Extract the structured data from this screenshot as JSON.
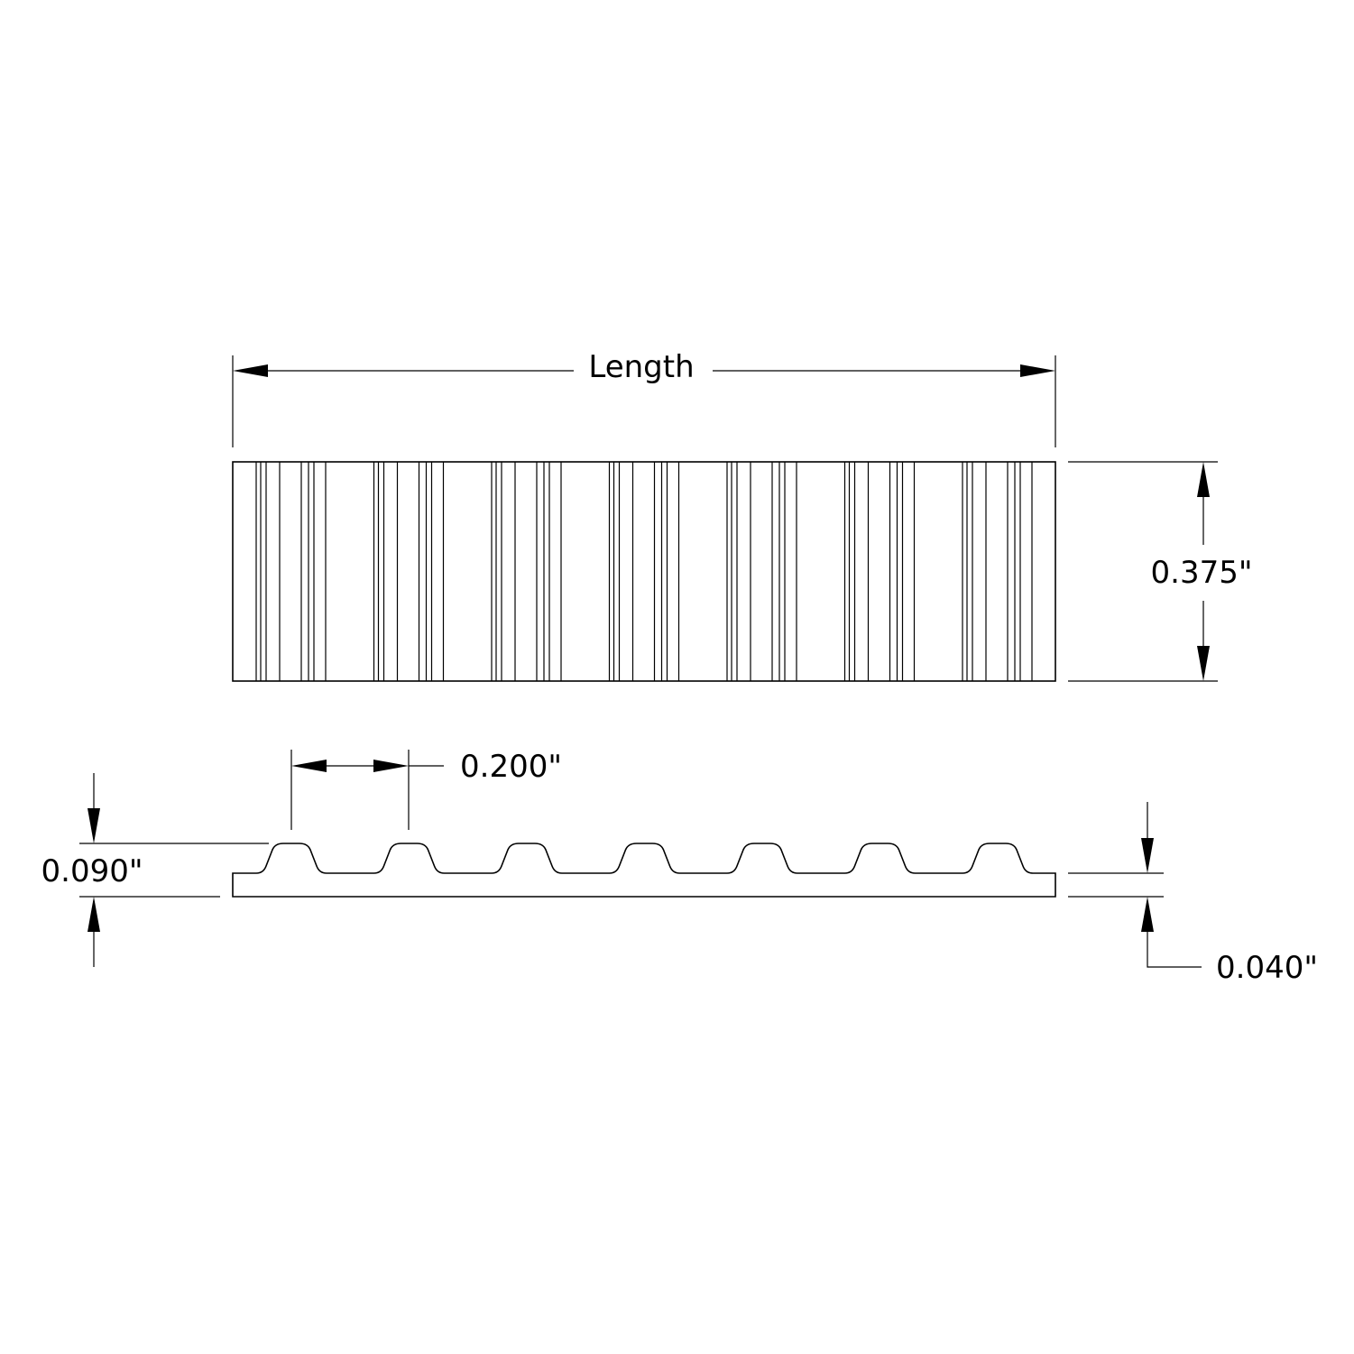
{
  "dimensions": {
    "length_label": "Length",
    "width_label": "0.375\"",
    "pitch_label": "0.200\"",
    "total_height_label": "0.090\"",
    "base_thickness_label": "0.040\""
  },
  "belt": {
    "tooth_count": 7
  }
}
